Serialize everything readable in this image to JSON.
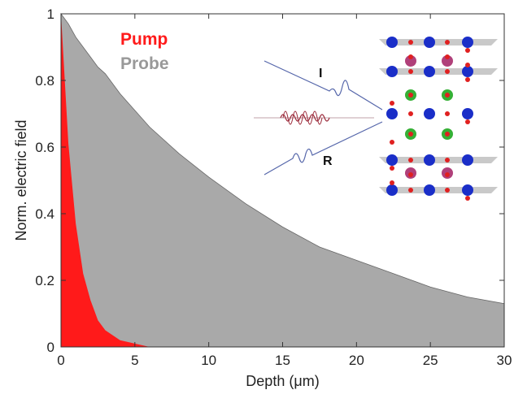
{
  "chart_data": {
    "type": "area",
    "x_label": "Depth (μm)",
    "y_label": "Norm. electric field",
    "x": [
      0,
      0.5,
      1,
      1.5,
      2,
      2.5,
      3,
      4,
      5,
      6,
      8,
      10,
      12.5,
      15,
      17.5,
      20,
      22.5,
      25,
      27.5,
      30
    ],
    "series": [
      {
        "name": "Pump",
        "color": "#ff1a1a",
        "values": [
          1,
          0.61,
          0.37,
          0.22,
          0.14,
          0.08,
          0.05,
          0.02,
          0.01,
          0,
          0,
          0,
          0,
          0,
          0,
          0,
          0,
          0,
          0,
          0
        ]
      },
      {
        "name": "Probe",
        "color": "#a9a9a9",
        "values": [
          1,
          0.97,
          0.93,
          0.9,
          0.87,
          0.84,
          0.82,
          0.76,
          0.71,
          0.66,
          0.58,
          0.51,
          0.43,
          0.36,
          0.3,
          0.26,
          0.22,
          0.18,
          0.15,
          0.13
        ]
      }
    ],
    "xlim": [
      0,
      30
    ],
    "xticks": [
      0,
      5,
      10,
      15,
      20,
      25,
      30
    ],
    "ylim": [
      0,
      1
    ],
    "yticks": [
      0,
      0.2,
      0.4,
      0.6,
      0.8,
      1
    ],
    "annotations": [
      "I",
      "R"
    ]
  }
}
